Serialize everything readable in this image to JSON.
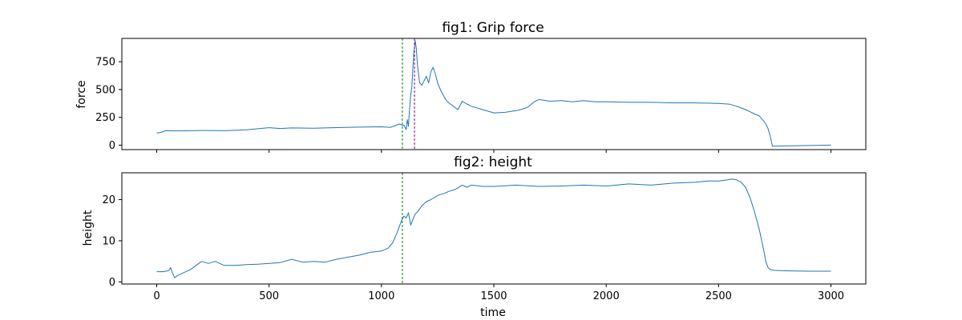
{
  "chart_data": [
    {
      "type": "line",
      "title": "fig1: Grip force",
      "xlabel": "",
      "ylabel": "force",
      "xlim": [
        -155,
        3155
      ],
      "ylim": [
        -40,
        960
      ],
      "xticks": [
        0,
        500,
        1000,
        1500,
        2000,
        2500,
        3000
      ],
      "xtick_labels_visible": false,
      "yticks": [
        0,
        250,
        500,
        750
      ],
      "ytick_labels": [
        "0",
        "250",
        "500",
        "750"
      ],
      "grid": false,
      "line_color": "#1f77b4",
      "vlines": [
        {
          "x": 1093,
          "color": "#008000",
          "style": "dashed"
        },
        {
          "x": 1147,
          "color": "#800080",
          "style": "dashed"
        }
      ],
      "x": [
        0,
        20,
        40,
        100,
        200,
        300,
        400,
        450,
        500,
        550,
        600,
        700,
        800,
        900,
        1000,
        1040,
        1060,
        1080,
        1093,
        1100,
        1110,
        1115,
        1120,
        1125,
        1130,
        1135,
        1140,
        1145,
        1150,
        1155,
        1160,
        1170,
        1180,
        1190,
        1200,
        1210,
        1220,
        1230,
        1240,
        1250,
        1260,
        1270,
        1280,
        1290,
        1300,
        1320,
        1340,
        1360,
        1380,
        1400,
        1450,
        1500,
        1550,
        1600,
        1620,
        1650,
        1680,
        1700,
        1750,
        1800,
        1850,
        1900,
        1950,
        2000,
        2100,
        2200,
        2300,
        2400,
        2500,
        2550,
        2580,
        2600,
        2620,
        2640,
        2660,
        2680,
        2700,
        2710,
        2720,
        2730,
        2740,
        2750,
        2760,
        2800,
        2900,
        3000
      ],
      "y": [
        110,
        115,
        130,
        128,
        132,
        130,
        138,
        148,
        157,
        150,
        155,
        152,
        158,
        162,
        165,
        160,
        175,
        190,
        178,
        180,
        140,
        230,
        170,
        330,
        450,
        520,
        700,
        850,
        940,
        870,
        720,
        560,
        540,
        580,
        620,
        560,
        660,
        700,
        640,
        560,
        510,
        470,
        430,
        400,
        380,
        350,
        320,
        395,
        370,
        350,
        320,
        290,
        295,
        310,
        320,
        340,
        390,
        410,
        395,
        400,
        390,
        400,
        390,
        390,
        385,
        385,
        380,
        380,
        375,
        368,
        350,
        335,
        320,
        300,
        280,
        265,
        220,
        190,
        150,
        80,
        -10,
        -10,
        -8,
        -7,
        -3,
        0
      ]
    },
    {
      "type": "line",
      "title": "fig2: height",
      "xlabel": "time",
      "ylabel": "height",
      "xlim": [
        -155,
        3155
      ],
      "ylim": [
        -0.5,
        26.5
      ],
      "xticks": [
        0,
        500,
        1000,
        1500,
        2000,
        2500,
        3000
      ],
      "xtick_labels": [
        "0",
        "500",
        "1000",
        "1500",
        "2000",
        "2500",
        "3000"
      ],
      "yticks": [
        0,
        10,
        20
      ],
      "ytick_labels": [
        "0",
        "10",
        "20"
      ],
      "grid": false,
      "line_color": "#1f77b4",
      "vlines": [
        {
          "x": 1093,
          "color": "#008000",
          "style": "dashed"
        }
      ],
      "x": [
        0,
        30,
        55,
        62,
        70,
        80,
        90,
        110,
        130,
        150,
        175,
        200,
        230,
        260,
        300,
        350,
        400,
        450,
        500,
        550,
        600,
        650,
        700,
        750,
        800,
        850,
        900,
        950,
        1000,
        1030,
        1050,
        1070,
        1090,
        1100,
        1110,
        1120,
        1130,
        1140,
        1150,
        1160,
        1180,
        1200,
        1220,
        1250,
        1280,
        1300,
        1330,
        1360,
        1380,
        1400,
        1450,
        1500,
        1600,
        1700,
        1800,
        1900,
        2000,
        2100,
        2200,
        2300,
        2400,
        2450,
        2500,
        2540,
        2560,
        2580,
        2600,
        2620,
        2640,
        2660,
        2680,
        2700,
        2710,
        2720,
        2730,
        2750,
        2800,
        2900,
        3000
      ],
      "y": [
        2.5,
        2.5,
        2.8,
        3.5,
        2.2,
        1.0,
        1.5,
        2.0,
        2.5,
        3.0,
        4.0,
        5.0,
        4.5,
        5.0,
        4.0,
        4.0,
        4.2,
        4.3,
        4.5,
        4.7,
        5.5,
        4.8,
        5.0,
        4.8,
        5.5,
        6.0,
        6.5,
        7.2,
        7.5,
        8.2,
        9.5,
        12.0,
        15.0,
        16.0,
        15.5,
        16.8,
        13.8,
        15.2,
        16.5,
        17.0,
        18.5,
        19.5,
        20.0,
        21.0,
        21.5,
        22.0,
        22.5,
        23.5,
        23.0,
        23.5,
        23.2,
        23.2,
        23.5,
        23.2,
        23.3,
        23.5,
        23.3,
        23.8,
        23.5,
        24.0,
        24.2,
        24.5,
        24.5,
        24.8,
        25.0,
        24.8,
        24.2,
        23.0,
        20.5,
        17.0,
        13.0,
        8.0,
        5.0,
        3.5,
        3.0,
        2.8,
        2.7,
        2.6,
        2.6
      ]
    }
  ]
}
